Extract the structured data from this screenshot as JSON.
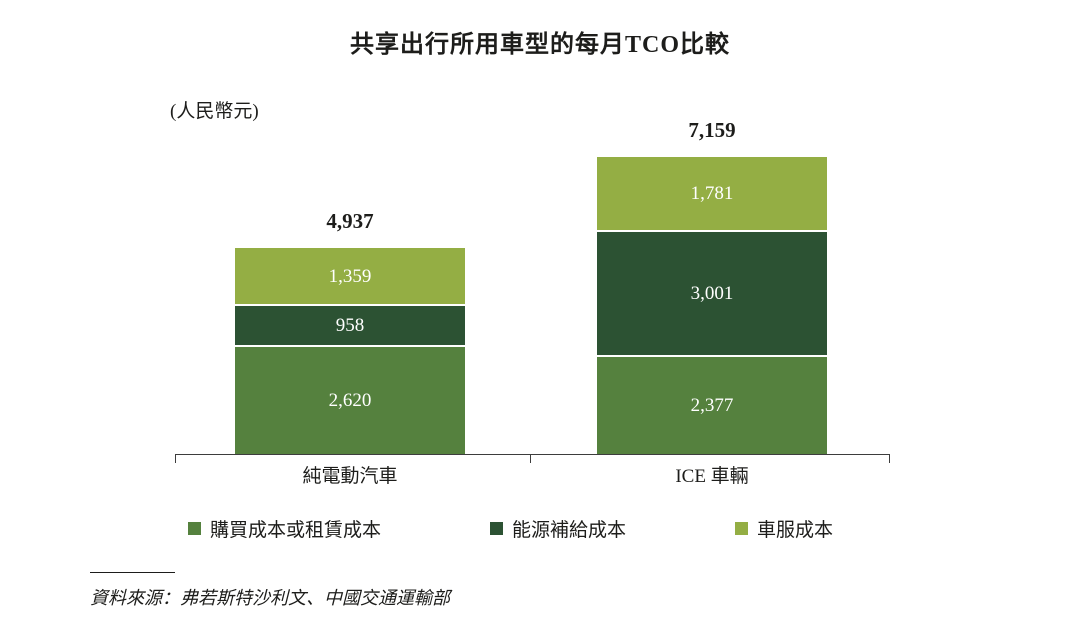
{
  "page": {
    "title": "共享出行所用車型的每月TCO比較",
    "unit_label": "(人民幣元)",
    "source_note": "資料來源：弗若斯特沙利文、中國交通運輸部"
  },
  "colors": {
    "purchase_cost": "#55813e",
    "energy_cost": "#2c5233",
    "service_cost": "#94ae44",
    "axis": "#3d3d3d",
    "text": "#1d1d1b"
  },
  "chart_data": {
    "type": "bar",
    "stacked": true,
    "title": "共享出行所用車型的每月TCO比較",
    "ylabel": "(人民幣元)",
    "categories": [
      "純電動汽車",
      "ICE 車輛"
    ],
    "series": [
      {
        "name": "購買成本或租賃成本",
        "color": "#55813e",
        "values": [
          2620,
          2377
        ],
        "labels": [
          "2,620",
          "2,377"
        ]
      },
      {
        "name": "能源補給成本",
        "color": "#2c5233",
        "values": [
          958,
          3001
        ],
        "labels": [
          "958",
          "3,001"
        ]
      },
      {
        "name": "車服成本",
        "color": "#94ae44",
        "values": [
          1359,
          1781
        ],
        "labels": [
          "1,359",
          "1,781"
        ]
      }
    ],
    "totals": [
      4937,
      7159
    ],
    "totals_labels": [
      "4,937",
      "7,159"
    ],
    "ylim": [
      0,
      7600
    ],
    "grid": false,
    "legend_position": "bottom"
  }
}
